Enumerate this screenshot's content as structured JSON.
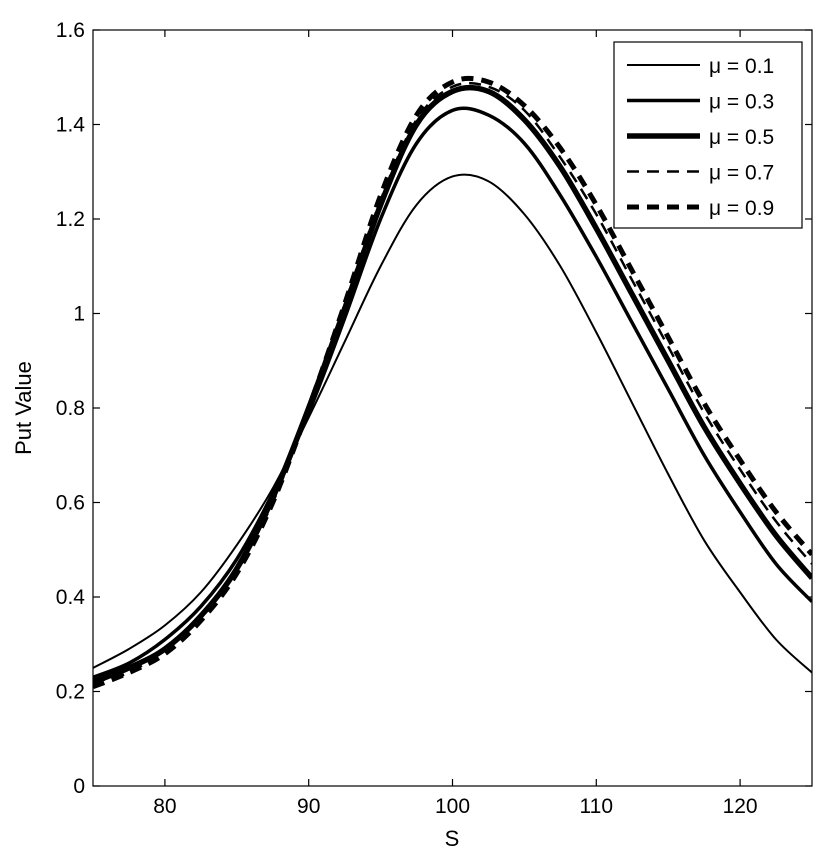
{
  "chart_data": {
    "type": "line",
    "title": "",
    "xlabel": "S",
    "ylabel": "Put Value",
    "xlim": [
      75,
      125
    ],
    "ylim": [
      0,
      1.6
    ],
    "xticks": [
      80,
      90,
      100,
      110,
      120
    ],
    "yticks": [
      0,
      0.2,
      0.4,
      0.6,
      0.8,
      1,
      1.2,
      1.4,
      1.6
    ],
    "ytick_labels": [
      "0",
      "0.2",
      "0.4",
      "0.6",
      "0.8",
      "1",
      "1.2",
      "1.4",
      "1.6"
    ],
    "grid": false,
    "legend_position": "top-right",
    "line_color": "#000000",
    "x": [
      75,
      77.5,
      80,
      82.5,
      85,
      87.5,
      90,
      92.5,
      95,
      97.5,
      100,
      102.5,
      105,
      107.5,
      110,
      112.5,
      115,
      117.5,
      120,
      122.5,
      125
    ],
    "series": [
      {
        "name": "μ = 0.1",
        "style": "thin-solid",
        "values": [
          0.25,
          0.29,
          0.34,
          0.41,
          0.51,
          0.63,
          0.78,
          0.94,
          1.1,
          1.23,
          1.29,
          1.28,
          1.21,
          1.1,
          0.96,
          0.81,
          0.66,
          0.52,
          0.41,
          0.31,
          0.24
        ]
      },
      {
        "name": "μ = 0.3",
        "style": "medium-solid",
        "values": [
          0.23,
          0.26,
          0.31,
          0.38,
          0.48,
          0.62,
          0.79,
          0.99,
          1.2,
          1.36,
          1.43,
          1.42,
          1.36,
          1.25,
          1.12,
          0.98,
          0.84,
          0.7,
          0.58,
          0.47,
          0.39
        ]
      },
      {
        "name": "μ = 0.5",
        "style": "thick-solid",
        "values": [
          0.22,
          0.25,
          0.29,
          0.36,
          0.46,
          0.61,
          0.8,
          1.01,
          1.23,
          1.4,
          1.47,
          1.47,
          1.41,
          1.31,
          1.18,
          1.04,
          0.9,
          0.76,
          0.64,
          0.53,
          0.44
        ]
      },
      {
        "name": "μ = 0.7",
        "style": "thin-dashed",
        "values": [
          0.22,
          0.24,
          0.29,
          0.36,
          0.46,
          0.6,
          0.8,
          1.02,
          1.24,
          1.41,
          1.48,
          1.48,
          1.43,
          1.33,
          1.21,
          1.07,
          0.93,
          0.79,
          0.67,
          0.56,
          0.47
        ]
      },
      {
        "name": "μ = 0.9",
        "style": "thick-dashed",
        "values": [
          0.21,
          0.24,
          0.28,
          0.35,
          0.45,
          0.6,
          0.8,
          1.02,
          1.25,
          1.42,
          1.49,
          1.49,
          1.44,
          1.35,
          1.23,
          1.09,
          0.95,
          0.81,
          0.69,
          0.58,
          0.49
        ]
      }
    ]
  }
}
